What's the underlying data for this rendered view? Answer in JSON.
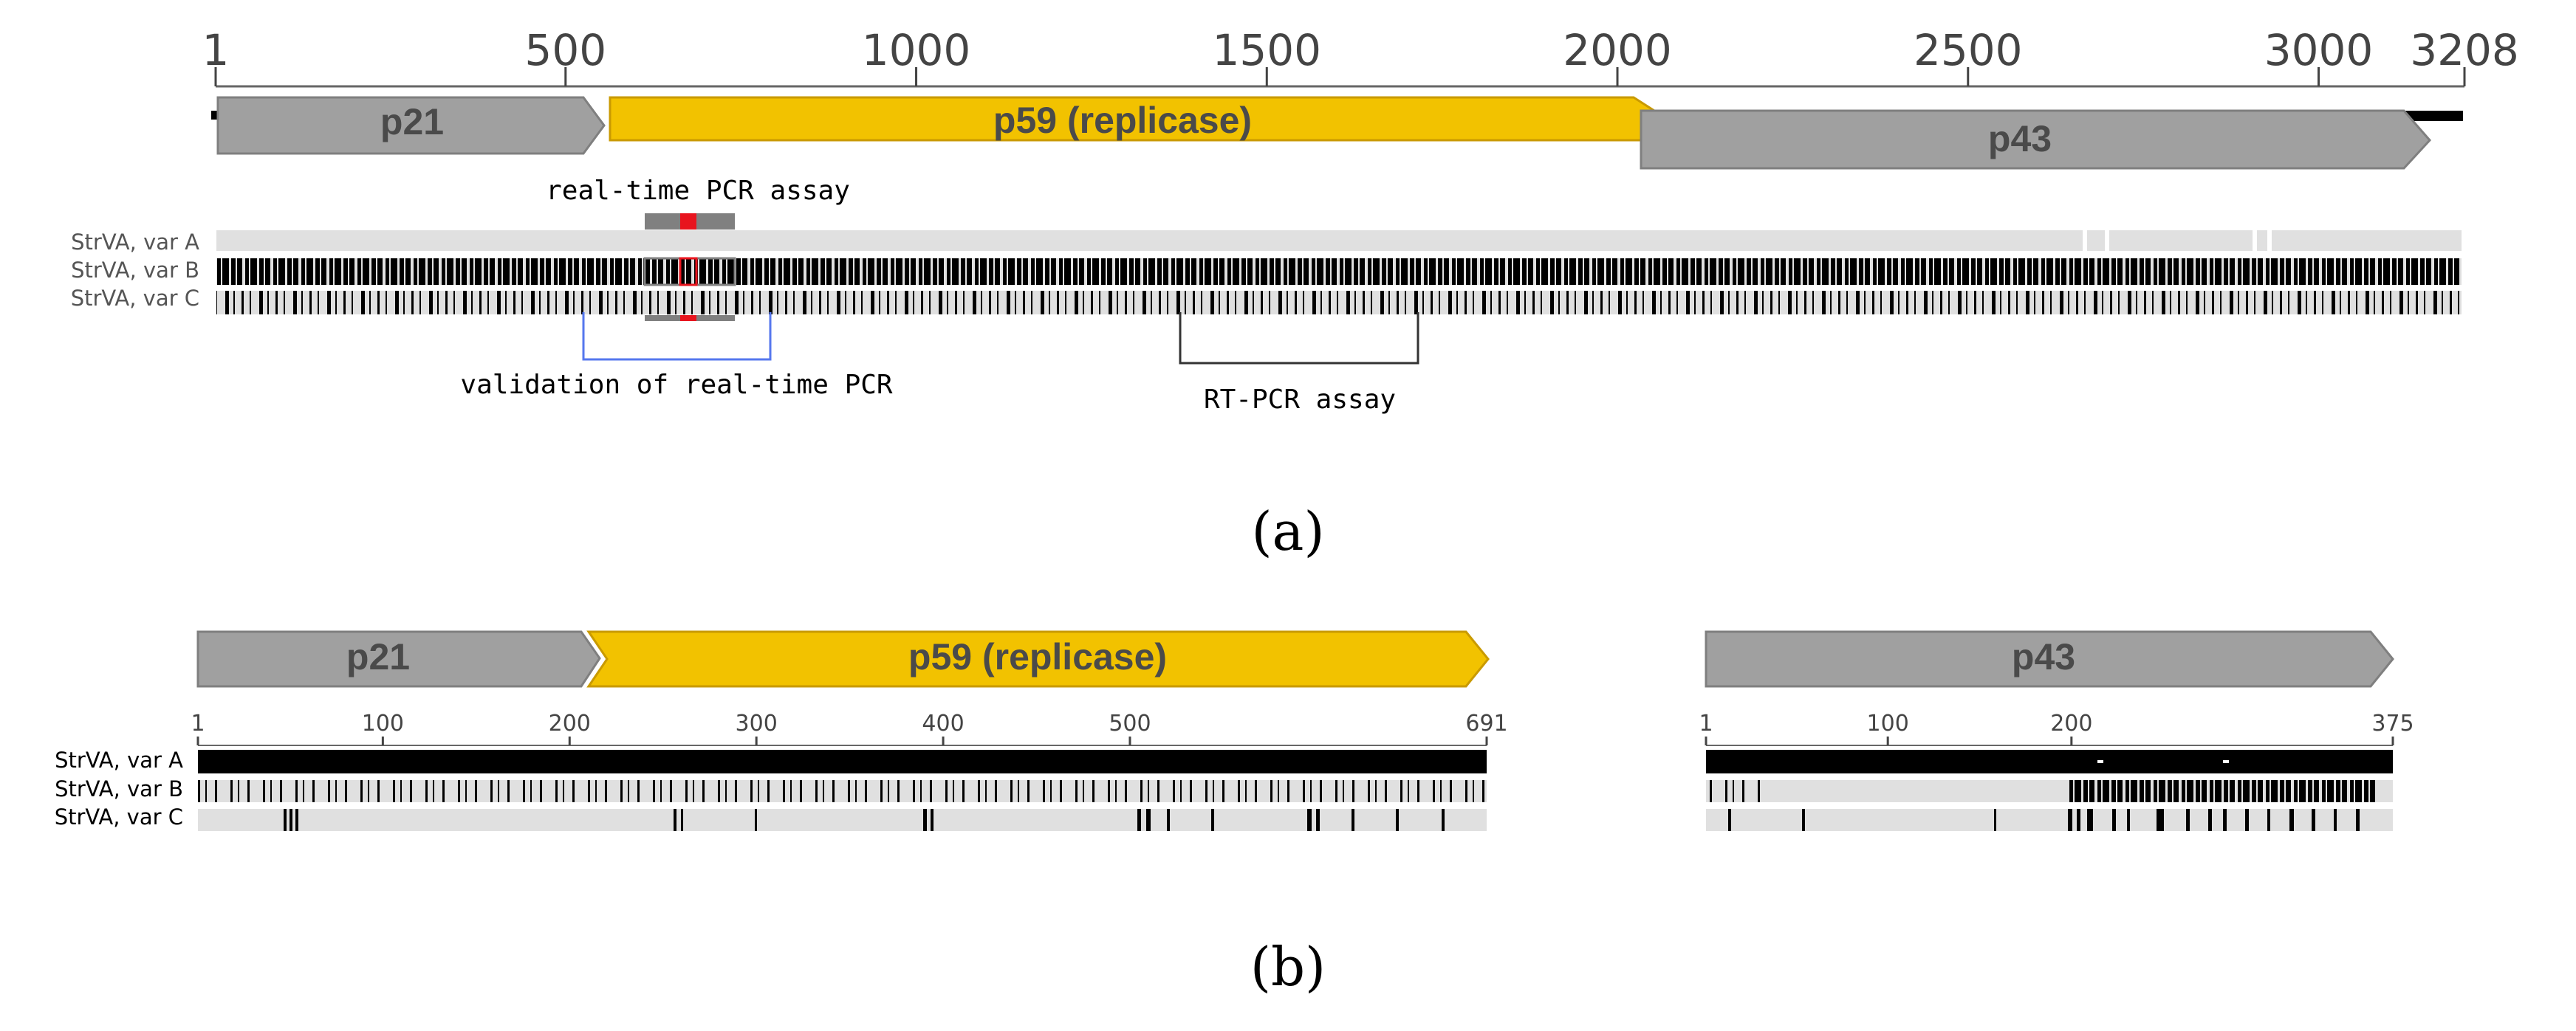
{
  "colors": {
    "gene_gray": "#a0a0a0",
    "gene_gray_stroke": "#7f7f7f",
    "replicase_yellow": "#f2c200",
    "replicase_stroke": "#c99a00",
    "track_light": "#e0e0e0",
    "variant_black": "#000000",
    "assay_red": "#e8141e",
    "assay_gray": "#808080",
    "validation_blue": "#5577ee",
    "bracket_dark": "#333333",
    "gene_label": "#4a4a4a"
  },
  "panel_a": {
    "caption": "(a)",
    "ruler": {
      "ticks": [
        "1",
        "500",
        "1000",
        "1500",
        "2000",
        "2500",
        "3000",
        "3208"
      ],
      "positions": [
        1,
        500,
        1000,
        1500,
        2000,
        2500,
        3000,
        3208
      ],
      "max": 3208
    },
    "genes": [
      {
        "label": "p21",
        "start": 1,
        "end": 560,
        "color": "gray"
      },
      {
        "label": "p59 (replicase)",
        "start": 560,
        "end": 2080,
        "color": "yellow"
      },
      {
        "label": "p43",
        "start": 2080,
        "end": 3120,
        "color": "gray"
      }
    ],
    "tracks": [
      "StrVA, var A",
      "StrVA, var B",
      "StrVA, var C"
    ],
    "realtime_label": "real-time PCR assay",
    "validation_label": "validation of real-time PCR",
    "rtpcr_label": "RT-PCR assay"
  },
  "panel_b": {
    "caption": "(b)",
    "genes": [
      {
        "label": "p21"
      },
      {
        "label": "p59 (replicase)"
      },
      {
        "label": "p43"
      }
    ],
    "tracks": [
      "StrVA, var A",
      "StrVA, var B",
      "StrVA, var C"
    ],
    "replicase_ruler": {
      "ticks": [
        "1",
        "100",
        "200",
        "300",
        "400",
        "500",
        "691"
      ],
      "positions": [
        1,
        100,
        200,
        300,
        400,
        500,
        691
      ],
      "max": 691
    },
    "p43_ruler": {
      "ticks": [
        "1",
        "100",
        "200",
        "375"
      ],
      "positions": [
        1,
        100,
        200,
        375
      ],
      "max": 375
    }
  }
}
